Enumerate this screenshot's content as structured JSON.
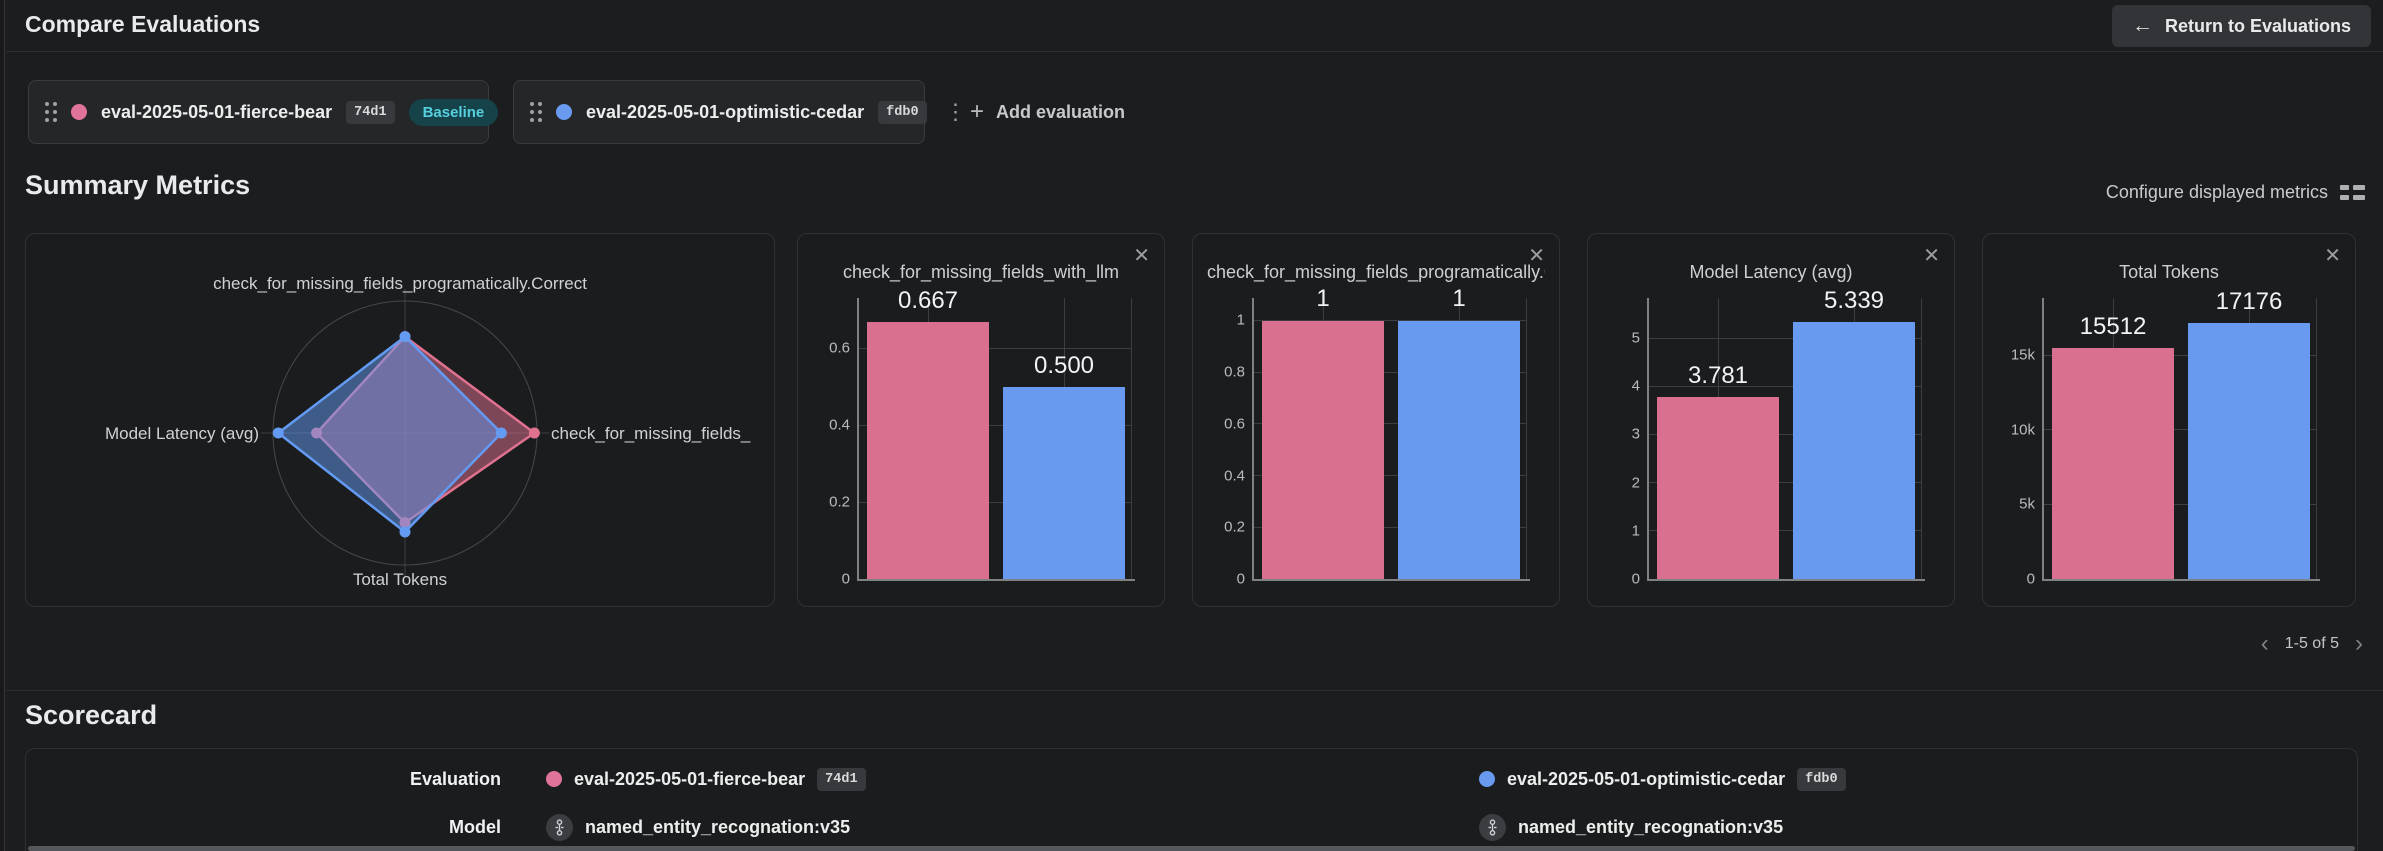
{
  "header": {
    "title": "Compare Evaluations",
    "return_button": "Return to Evaluations"
  },
  "evaluations": [
    {
      "name": "eval-2025-05-01-fierce-bear",
      "id": "74d1",
      "dot_color": "#e0739a",
      "baseline_label": "Baseline"
    },
    {
      "name": "eval-2025-05-01-optimistic-cedar",
      "id": "fdb0",
      "dot_color": "#689af0"
    }
  ],
  "add_evaluation_label": "Add evaluation",
  "summary": {
    "heading": "Summary Metrics",
    "configure_label": "Configure displayed metrics",
    "pagination": {
      "range": "1-5 of 5",
      "prev": "‹",
      "next": "›"
    }
  },
  "chart_data": [
    {
      "type": "radar",
      "axis_labels": {
        "top": "check_for_missing_fields_programatically.Correct",
        "right": "check_for_missing_fields_",
        "bottom": "Total Tokens",
        "left": "Model Latency (avg)"
      },
      "series": [
        {
          "name": "eval-2025-05-01-fierce-bear",
          "color": "#e0728f",
          "fill": "rgba(224,114,143,0.5)",
          "values": {
            "top": 1,
            "right": 0.667,
            "bottom": 15512,
            "left": 3.781
          },
          "radii": {
            "top": 0.73,
            "right": 0.98,
            "bottom": 0.68,
            "left": 0.67
          }
        },
        {
          "name": "eval-2025-05-01-optimistic-cedar",
          "color": "#639af2",
          "fill": "rgba(99,154,242,0.5)",
          "values": {
            "top": 1,
            "right": 0.5,
            "bottom": 17176,
            "left": 5.339
          },
          "radii": {
            "top": 0.73,
            "right": 0.73,
            "bottom": 0.75,
            "left": 0.96
          }
        }
      ]
    },
    {
      "type": "bar",
      "title": "check_for_missing_fields_with_llm",
      "values": [
        0.667,
        0.5
      ],
      "labels": [
        "0.667",
        "0.500"
      ],
      "colors": [
        "#d9708f",
        "#689af0"
      ],
      "ylim": [
        0,
        0.73
      ],
      "yticks": [
        {
          "v": 0,
          "label": "0"
        },
        {
          "v": 0.2,
          "label": "0.2"
        },
        {
          "v": 0.4,
          "label": "0.4"
        },
        {
          "v": 0.6,
          "label": "0.6"
        }
      ]
    },
    {
      "type": "bar",
      "title": "check_for_missing_fields_programatically.Correct",
      "values": [
        1,
        1
      ],
      "labels": [
        "1",
        "1"
      ],
      "colors": [
        "#d9708f",
        "#689af0"
      ],
      "ylim": [
        0,
        1.087
      ],
      "yticks": [
        {
          "v": 0,
          "label": "0"
        },
        {
          "v": 0.2,
          "label": "0.2"
        },
        {
          "v": 0.4,
          "label": "0.4"
        },
        {
          "v": 0.6,
          "label": "0.6"
        },
        {
          "v": 0.8,
          "label": "0.8"
        },
        {
          "v": 1,
          "label": "1"
        }
      ]
    },
    {
      "type": "bar",
      "title": "Model Latency (avg)",
      "values": [
        3.781,
        5.339
      ],
      "labels": [
        "3.781",
        "5.339"
      ],
      "colors": [
        "#d9708f",
        "#689af0"
      ],
      "ylim": [
        0,
        5.83
      ],
      "yticks": [
        {
          "v": 0,
          "label": "0"
        },
        {
          "v": 1,
          "label": "1"
        },
        {
          "v": 2,
          "label": "2"
        },
        {
          "v": 3,
          "label": "3"
        },
        {
          "v": 4,
          "label": "4"
        },
        {
          "v": 5,
          "label": "5"
        }
      ]
    },
    {
      "type": "bar",
      "title": "Total Tokens",
      "values": [
        15512,
        17176
      ],
      "labels": [
        "15512",
        "17176"
      ],
      "colors": [
        "#d9708f",
        "#689af0"
      ],
      "ylim": [
        0,
        18840
      ],
      "yticks": [
        {
          "v": 0,
          "label": "0"
        },
        {
          "v": 5000,
          "label": "5k"
        },
        {
          "v": 10000,
          "label": "10k"
        },
        {
          "v": 15000,
          "label": "15k"
        }
      ]
    }
  ],
  "scorecard": {
    "heading": "Scorecard",
    "rows": [
      {
        "label": "Evaluation"
      },
      {
        "label": "Model",
        "value": "named_entity_recognation:v35"
      }
    ]
  }
}
